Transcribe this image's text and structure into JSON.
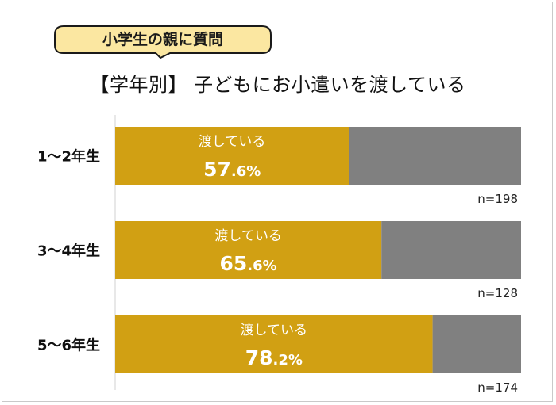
{
  "header": {
    "badge_label": "小学生の親に質問",
    "title": "【学年別】 子どもにお小遣いを渡している"
  },
  "colors": {
    "primary_bar": "#d1a013",
    "secondary_bar": "#808080",
    "badge_fill": "#fbe7a1",
    "badge_border": "#1a1a1a",
    "axis_line": "#d0d0d0"
  },
  "chart_data": {
    "type": "bar",
    "orientation": "horizontal",
    "stacked": true,
    "categories": [
      "1～2年生",
      "3～4年生",
      "5～6年生"
    ],
    "series": [
      {
        "name": "渡している",
        "values": [
          57.6,
          65.6,
          78.2
        ],
        "labels": [
          "57.6%",
          "65.6%",
          "78.2%"
        ]
      },
      {
        "values": [
          42.4,
          34.4,
          21.8
        ]
      }
    ],
    "sample_sizes": [
      "n=198",
      "n=128",
      "n=174"
    ],
    "xlim": [
      0,
      100
    ]
  }
}
